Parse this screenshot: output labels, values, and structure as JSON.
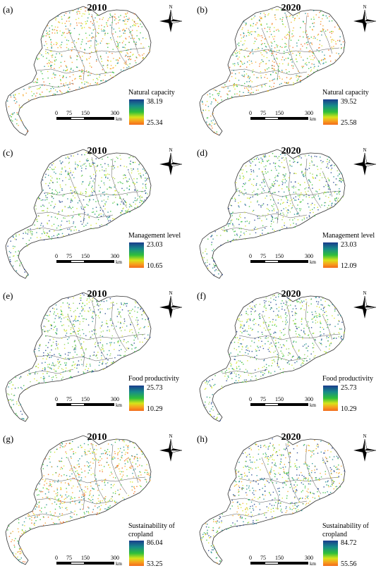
{
  "panels": [
    {
      "letter": "(a)",
      "year": "2010",
      "legend_title": "Natural capacity",
      "max": "38.19",
      "min": "25.34"
    },
    {
      "letter": "(b)",
      "year": "2020",
      "legend_title": "Natural capacity",
      "max": "39.52",
      "min": "25.58"
    },
    {
      "letter": "(c)",
      "year": "2010",
      "legend_title": "Management level",
      "max": "23.03",
      "min": "10.65"
    },
    {
      "letter": "(d)",
      "year": "2020",
      "legend_title": "Management level",
      "max": "23.03",
      "min": "12.09"
    },
    {
      "letter": "(e)",
      "year": "2010",
      "legend_title": "Food productivity",
      "max": "25.73",
      "min": "10.29"
    },
    {
      "letter": "(f)",
      "year": "2020",
      "legend_title": "Food productivity",
      "max": "25.73",
      "min": "10.29"
    },
    {
      "letter": "(g)",
      "year": "2010",
      "legend_title": "Sustainability of cropland",
      "max": "86.04",
      "min": "53.25"
    },
    {
      "letter": "(h)",
      "year": "2020",
      "legend_title": "Sustainability of cropland",
      "max": "84.72",
      "min": "55.56"
    }
  ],
  "scale": {
    "t0": "0",
    "t1": "75",
    "t2": "150",
    "t3": "300",
    "unit": "km"
  },
  "north_label": "N",
  "colors": {
    "high": "#1a3c8c",
    "mid": "#2fbf3a",
    "low": "#f36a1c",
    "outline": "#333333"
  }
}
